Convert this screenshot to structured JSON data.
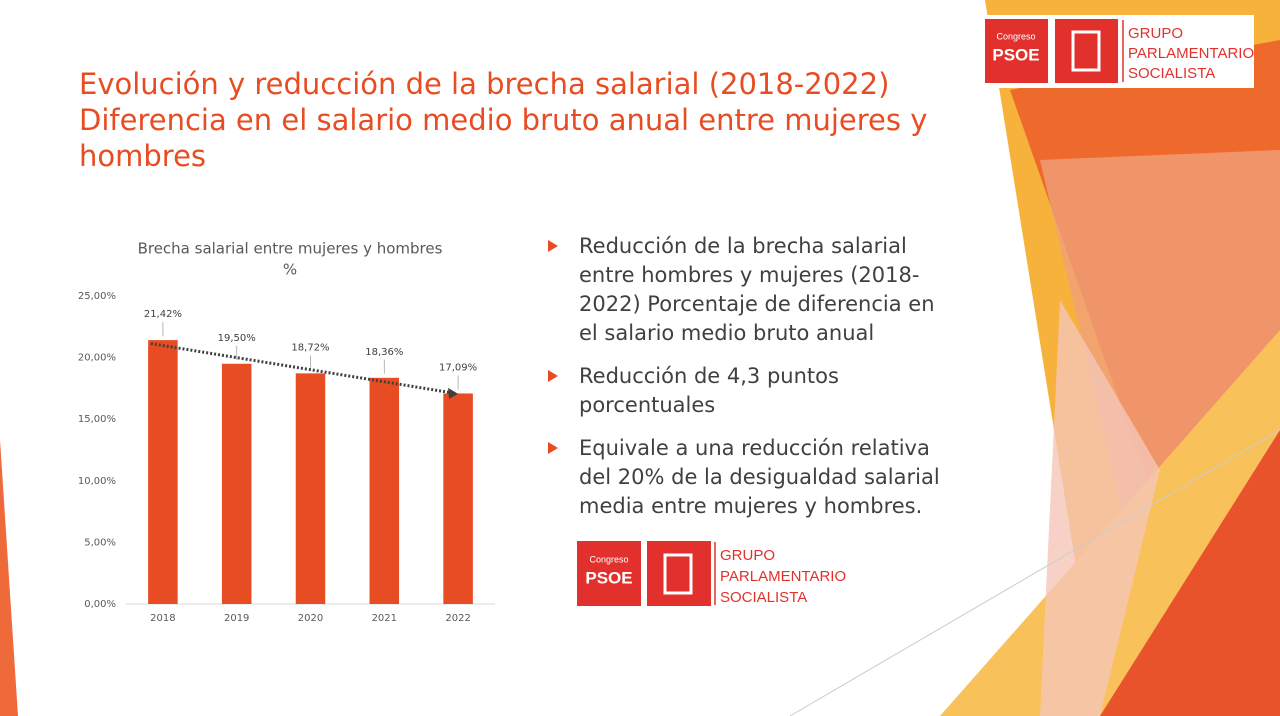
{
  "header": {
    "title": [
      "Evolución y reducción de la brecha salarial (2018-2022)",
      "Diferencia en el salario medio bruto anual entre mujeres y hombres"
    ]
  },
  "chart_data": {
    "type": "bar",
    "title": "Brecha salarial entre mujeres y hombres",
    "subtitle": "%",
    "categories": [
      "2018",
      "2019",
      "2020",
      "2021",
      "2022"
    ],
    "values": [
      21.42,
      19.5,
      18.72,
      18.36,
      17.09
    ],
    "value_labels": [
      "21,42%",
      "19,50%",
      "18,72%",
      "18,36%",
      "17,09%"
    ],
    "color": "#e84c22",
    "ylim": [
      0,
      25
    ],
    "yticks": [
      {
        "value": 0,
        "label": "0,00%"
      },
      {
        "value": 5,
        "label": "5,00%"
      },
      {
        "value": 10,
        "label": "10,00%"
      },
      {
        "value": 15,
        "label": "15,00%"
      },
      {
        "value": 20,
        "label": "20,00%"
      },
      {
        "value": 25,
        "label": "25,00%"
      }
    ],
    "grid": false,
    "trendline": "linear"
  },
  "bullets": [
    "Reducción de la brecha salarial entre hombres y mujeres (2018-2022) Porcentaje de diferencia en el salario medio bruto anual",
    "Reducción de 4,3 puntos porcentuales",
    "Equivale a una reducción relativa del 20% de la desigualdad salarial media entre mujeres y hombres."
  ],
  "logo": {
    "small": "Congreso",
    "party": "PSOE",
    "lines": [
      "GRUPO",
      "PARLAMENTARIO",
      "SOCIALISTA"
    ]
  }
}
